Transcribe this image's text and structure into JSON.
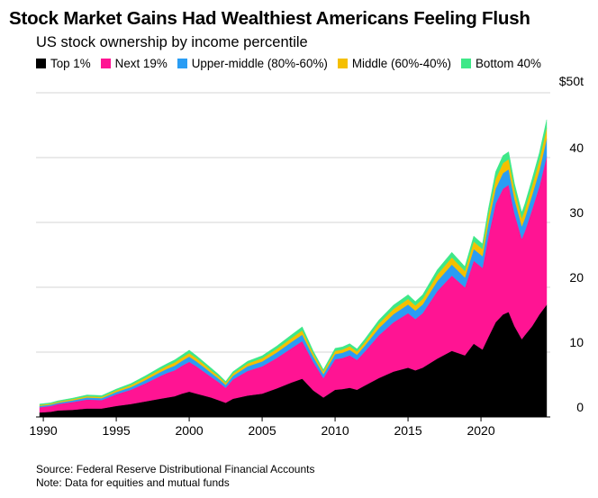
{
  "title": "Stock Market Gains Had Wealthiest Americans Feeling Flush",
  "subtitle": "US stock ownership by income percentile",
  "source": "Source: Federal Reserve Distributional Financial Accounts",
  "note": "Note: Data for equities and mutual funds",
  "chart_data": {
    "type": "area",
    "stacked": true,
    "y_unit_label": "$50t",
    "ylim": [
      0,
      50
    ],
    "y_ticks": [
      0,
      10,
      20,
      30,
      40,
      50
    ],
    "y_tick_labels": [
      "0",
      "10",
      "20",
      "30",
      "40",
      "$50t"
    ],
    "xlim": [
      1989.5,
      2024.75
    ],
    "x_ticks": [
      1990,
      1995,
      2000,
      2005,
      2010,
      2015,
      2020
    ],
    "x_tick_labels": [
      "1990",
      "1995",
      "2000",
      "2005",
      "2010",
      "2015",
      "2020"
    ],
    "grid": true,
    "legend_position": "top",
    "x": [
      1989.75,
      1990.5,
      1991,
      1992,
      1993,
      1994,
      1995,
      1996,
      1997,
      1998,
      1998.5,
      1999,
      1999.5,
      2000,
      2000.5,
      2001,
      2001.5,
      2002,
      2002.5,
      2003,
      2004,
      2005,
      2006,
      2007,
      2007.75,
      2008.5,
      2009.2,
      2010,
      2010.5,
      2011,
      2011.5,
      2012,
      2013,
      2014,
      2015,
      2015.5,
      2016,
      2017,
      2018,
      2018.9,
      2019.5,
      2020.1,
      2020.5,
      2021,
      2021.5,
      2021.9,
      2022.3,
      2022.8,
      2023,
      2023.5,
      2024,
      2024.5
    ],
    "series": [
      {
        "name": "Top 1%",
        "color": "#000000",
        "values": [
          0.7,
          0.8,
          1.0,
          1.1,
          1.3,
          1.3,
          1.7,
          2.0,
          2.4,
          2.8,
          3.0,
          3.2,
          3.6,
          3.9,
          3.6,
          3.3,
          3.0,
          2.6,
          2.2,
          2.8,
          3.3,
          3.6,
          4.4,
          5.3,
          5.9,
          4.1,
          3.0,
          4.2,
          4.3,
          4.5,
          4.2,
          4.8,
          6.0,
          7.0,
          7.6,
          7.2,
          7.6,
          9.0,
          10.2,
          9.5,
          11.3,
          10.4,
          12.3,
          14.6,
          15.8,
          16.2,
          14.0,
          12.0,
          12.6,
          14.0,
          15.8,
          17.3
        ]
      },
      {
        "name": "Next 19%",
        "color": "#ff1493",
        "values": [
          0.8,
          0.9,
          1.0,
          1.2,
          1.4,
          1.3,
          1.8,
          2.2,
          2.8,
          3.5,
          3.8,
          4.0,
          4.3,
          4.6,
          4.2,
          3.7,
          3.2,
          2.8,
          2.3,
          3.0,
          3.8,
          4.2,
          4.7,
          5.3,
          5.8,
          4.4,
          3.0,
          4.7,
          4.8,
          5.0,
          4.6,
          5.2,
          6.6,
          7.6,
          8.4,
          7.9,
          8.4,
          10.4,
          11.6,
          10.5,
          12.8,
          12.6,
          15.5,
          18.3,
          19.4,
          19.6,
          17.4,
          15.5,
          16.0,
          18.0,
          19.8,
          22.9
        ]
      },
      {
        "name": "Upper-middle (80%-60%)",
        "color": "#2a9df4",
        "values": [
          0.2,
          0.2,
          0.2,
          0.25,
          0.3,
          0.3,
          0.35,
          0.4,
          0.5,
          0.6,
          0.65,
          0.7,
          0.75,
          0.8,
          0.75,
          0.7,
          0.6,
          0.55,
          0.45,
          0.55,
          0.7,
          0.75,
          0.85,
          0.95,
          1.0,
          0.8,
          0.6,
          0.8,
          0.8,
          0.85,
          0.8,
          0.9,
          1.1,
          1.25,
          1.35,
          1.3,
          1.35,
          1.55,
          1.7,
          1.5,
          1.8,
          1.8,
          2.0,
          2.3,
          2.4,
          2.4,
          2.2,
          1.9,
          2.0,
          2.2,
          2.4,
          2.7
        ]
      },
      {
        "name": "Middle (60%-40%)",
        "color": "#f5bf00",
        "values": [
          0.15,
          0.15,
          0.15,
          0.2,
          0.2,
          0.2,
          0.25,
          0.3,
          0.35,
          0.4,
          0.45,
          0.5,
          0.5,
          0.55,
          0.5,
          0.45,
          0.4,
          0.35,
          0.3,
          0.35,
          0.45,
          0.5,
          0.55,
          0.6,
          0.65,
          0.5,
          0.4,
          0.5,
          0.5,
          0.55,
          0.5,
          0.55,
          0.7,
          0.8,
          0.85,
          0.8,
          0.85,
          1.0,
          1.1,
          1.0,
          1.15,
          1.1,
          1.3,
          1.5,
          1.55,
          1.55,
          1.4,
          1.25,
          1.3,
          1.45,
          1.6,
          1.7
        ]
      },
      {
        "name": "Bottom 40%",
        "color": "#3ee888",
        "values": [
          0.15,
          0.15,
          0.15,
          0.15,
          0.2,
          0.2,
          0.2,
          0.25,
          0.3,
          0.35,
          0.35,
          0.4,
          0.4,
          0.45,
          0.4,
          0.35,
          0.35,
          0.3,
          0.25,
          0.3,
          0.35,
          0.4,
          0.45,
          0.5,
          0.55,
          0.4,
          0.3,
          0.4,
          0.4,
          0.4,
          0.4,
          0.45,
          0.55,
          0.6,
          0.65,
          0.6,
          0.65,
          0.75,
          0.8,
          0.7,
          0.85,
          0.8,
          0.95,
          1.1,
          1.15,
          1.15,
          1.0,
          0.9,
          0.95,
          1.05,
          1.15,
          1.25
        ]
      }
    ]
  }
}
